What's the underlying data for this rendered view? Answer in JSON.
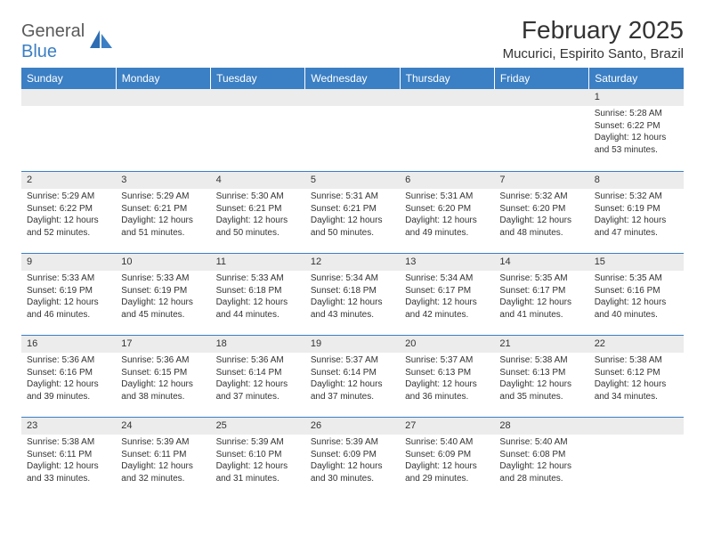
{
  "logo": {
    "text_general": "General",
    "text_blue": "Blue"
  },
  "header": {
    "month_title": "February 2025",
    "location": "Mucurici, Espirito Santo, Brazil"
  },
  "colors": {
    "accent": "#3b7fc4",
    "header_text": "#ffffff",
    "daynum_bg": "#ececec",
    "text": "#333333",
    "logo_gray": "#5a5a5a"
  },
  "day_labels": [
    "Sunday",
    "Monday",
    "Tuesday",
    "Wednesday",
    "Thursday",
    "Friday",
    "Saturday"
  ],
  "weeks": [
    [
      null,
      null,
      null,
      null,
      null,
      null,
      {
        "n": "1",
        "sunrise": "5:28 AM",
        "sunset": "6:22 PM",
        "dl1": "Daylight: 12 hours",
        "dl2": "and 53 minutes."
      }
    ],
    [
      {
        "n": "2",
        "sunrise": "5:29 AM",
        "sunset": "6:22 PM",
        "dl1": "Daylight: 12 hours",
        "dl2": "and 52 minutes."
      },
      {
        "n": "3",
        "sunrise": "5:29 AM",
        "sunset": "6:21 PM",
        "dl1": "Daylight: 12 hours",
        "dl2": "and 51 minutes."
      },
      {
        "n": "4",
        "sunrise": "5:30 AM",
        "sunset": "6:21 PM",
        "dl1": "Daylight: 12 hours",
        "dl2": "and 50 minutes."
      },
      {
        "n": "5",
        "sunrise": "5:31 AM",
        "sunset": "6:21 PM",
        "dl1": "Daylight: 12 hours",
        "dl2": "and 50 minutes."
      },
      {
        "n": "6",
        "sunrise": "5:31 AM",
        "sunset": "6:20 PM",
        "dl1": "Daylight: 12 hours",
        "dl2": "and 49 minutes."
      },
      {
        "n": "7",
        "sunrise": "5:32 AM",
        "sunset": "6:20 PM",
        "dl1": "Daylight: 12 hours",
        "dl2": "and 48 minutes."
      },
      {
        "n": "8",
        "sunrise": "5:32 AM",
        "sunset": "6:19 PM",
        "dl1": "Daylight: 12 hours",
        "dl2": "and 47 minutes."
      }
    ],
    [
      {
        "n": "9",
        "sunrise": "5:33 AM",
        "sunset": "6:19 PM",
        "dl1": "Daylight: 12 hours",
        "dl2": "and 46 minutes."
      },
      {
        "n": "10",
        "sunrise": "5:33 AM",
        "sunset": "6:19 PM",
        "dl1": "Daylight: 12 hours",
        "dl2": "and 45 minutes."
      },
      {
        "n": "11",
        "sunrise": "5:33 AM",
        "sunset": "6:18 PM",
        "dl1": "Daylight: 12 hours",
        "dl2": "and 44 minutes."
      },
      {
        "n": "12",
        "sunrise": "5:34 AM",
        "sunset": "6:18 PM",
        "dl1": "Daylight: 12 hours",
        "dl2": "and 43 minutes."
      },
      {
        "n": "13",
        "sunrise": "5:34 AM",
        "sunset": "6:17 PM",
        "dl1": "Daylight: 12 hours",
        "dl2": "and 42 minutes."
      },
      {
        "n": "14",
        "sunrise": "5:35 AM",
        "sunset": "6:17 PM",
        "dl1": "Daylight: 12 hours",
        "dl2": "and 41 minutes."
      },
      {
        "n": "15",
        "sunrise": "5:35 AM",
        "sunset": "6:16 PM",
        "dl1": "Daylight: 12 hours",
        "dl2": "and 40 minutes."
      }
    ],
    [
      {
        "n": "16",
        "sunrise": "5:36 AM",
        "sunset": "6:16 PM",
        "dl1": "Daylight: 12 hours",
        "dl2": "and 39 minutes."
      },
      {
        "n": "17",
        "sunrise": "5:36 AM",
        "sunset": "6:15 PM",
        "dl1": "Daylight: 12 hours",
        "dl2": "and 38 minutes."
      },
      {
        "n": "18",
        "sunrise": "5:36 AM",
        "sunset": "6:14 PM",
        "dl1": "Daylight: 12 hours",
        "dl2": "and 37 minutes."
      },
      {
        "n": "19",
        "sunrise": "5:37 AM",
        "sunset": "6:14 PM",
        "dl1": "Daylight: 12 hours",
        "dl2": "and 37 minutes."
      },
      {
        "n": "20",
        "sunrise": "5:37 AM",
        "sunset": "6:13 PM",
        "dl1": "Daylight: 12 hours",
        "dl2": "and 36 minutes."
      },
      {
        "n": "21",
        "sunrise": "5:38 AM",
        "sunset": "6:13 PM",
        "dl1": "Daylight: 12 hours",
        "dl2": "and 35 minutes."
      },
      {
        "n": "22",
        "sunrise": "5:38 AM",
        "sunset": "6:12 PM",
        "dl1": "Daylight: 12 hours",
        "dl2": "and 34 minutes."
      }
    ],
    [
      {
        "n": "23",
        "sunrise": "5:38 AM",
        "sunset": "6:11 PM",
        "dl1": "Daylight: 12 hours",
        "dl2": "and 33 minutes."
      },
      {
        "n": "24",
        "sunrise": "5:39 AM",
        "sunset": "6:11 PM",
        "dl1": "Daylight: 12 hours",
        "dl2": "and 32 minutes."
      },
      {
        "n": "25",
        "sunrise": "5:39 AM",
        "sunset": "6:10 PM",
        "dl1": "Daylight: 12 hours",
        "dl2": "and 31 minutes."
      },
      {
        "n": "26",
        "sunrise": "5:39 AM",
        "sunset": "6:09 PM",
        "dl1": "Daylight: 12 hours",
        "dl2": "and 30 minutes."
      },
      {
        "n": "27",
        "sunrise": "5:40 AM",
        "sunset": "6:09 PM",
        "dl1": "Daylight: 12 hours",
        "dl2": "and 29 minutes."
      },
      {
        "n": "28",
        "sunrise": "5:40 AM",
        "sunset": "6:08 PM",
        "dl1": "Daylight: 12 hours",
        "dl2": "and 28 minutes."
      },
      null
    ]
  ],
  "labels": {
    "sunrise_prefix": "Sunrise: ",
    "sunset_prefix": "Sunset: "
  }
}
